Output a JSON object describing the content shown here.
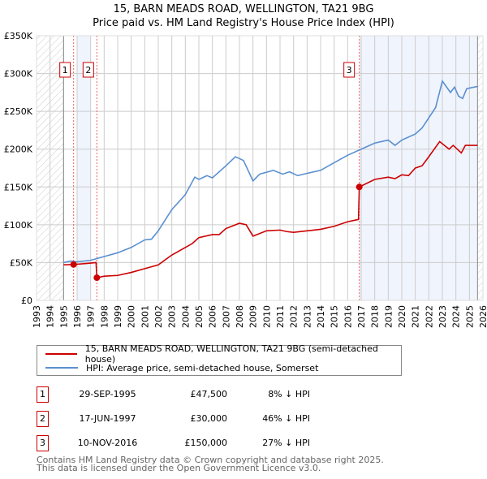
{
  "chart_data": {
    "type": "line",
    "title": "15, BARN MEADS ROAD, WELLINGTON, TA21 9BG",
    "subtitle": "Price paid vs. HM Land Registry's House Price Index (HPI)",
    "xlim": [
      1993,
      2026
    ],
    "ylim": [
      0,
      350000
    ],
    "yticks": [
      {
        "v": 0,
        "label": "£0"
      },
      {
        "v": 50000,
        "label": "£50K"
      },
      {
        "v": 100000,
        "label": "£100K"
      },
      {
        "v": 150000,
        "label": "£150K"
      },
      {
        "v": 200000,
        "label": "£200K"
      },
      {
        "v": 250000,
        "label": "£250K"
      },
      {
        "v": 300000,
        "label": "£300K"
      },
      {
        "v": 350000,
        "label": "£350K"
      }
    ],
    "xticks": [
      "1993",
      "1994",
      "1995",
      "1996",
      "1997",
      "1998",
      "1999",
      "2000",
      "2001",
      "2002",
      "2003",
      "2004",
      "2005",
      "2006",
      "2007",
      "2008",
      "2009",
      "2010",
      "2011",
      "2012",
      "2013",
      "2014",
      "2015",
      "2016",
      "2017",
      "2018",
      "2019",
      "2020",
      "2021",
      "2022",
      "2023",
      "2024",
      "2025",
      "2026"
    ],
    "grid": true,
    "series": [
      {
        "name": "15, BARN MEADS ROAD, WELLINGTON, TA21 9BG (semi-detached house)",
        "color": "#cc0000",
        "points": [
          [
            1995,
            47000
          ],
          [
            1995.74,
            47500
          ],
          [
            1996.5,
            48500
          ],
          [
            1997.4,
            50000
          ],
          [
            1997.46,
            30000
          ],
          [
            1998,
            32000
          ],
          [
            1999,
            33000
          ],
          [
            2000,
            37000
          ],
          [
            2001,
            42000
          ],
          [
            2002,
            47000
          ],
          [
            2003,
            60000
          ],
          [
            2004,
            70000
          ],
          [
            2004.5,
            75000
          ],
          [
            2005,
            83000
          ],
          [
            2006,
            87000
          ],
          [
            2006.5,
            87000
          ],
          [
            2007,
            95000
          ],
          [
            2008,
            102000
          ],
          [
            2008.5,
            100000
          ],
          [
            2009,
            85000
          ],
          [
            2010,
            92000
          ],
          [
            2011,
            93000
          ],
          [
            2011.5,
            91000
          ],
          [
            2012,
            90000
          ],
          [
            2013,
            92000
          ],
          [
            2014,
            94000
          ],
          [
            2015,
            98000
          ],
          [
            2016,
            104000
          ],
          [
            2016.8,
            107000
          ],
          [
            2016.86,
            150000
          ],
          [
            2018,
            160000
          ],
          [
            2019,
            163000
          ],
          [
            2019.5,
            161000
          ],
          [
            2020,
            166000
          ],
          [
            2020.5,
            165000
          ],
          [
            2021,
            175000
          ],
          [
            2021.5,
            178000
          ],
          [
            2022,
            190000
          ],
          [
            2022.8,
            210000
          ],
          [
            2023.5,
            200000
          ],
          [
            2023.8,
            205000
          ],
          [
            2024.4,
            195000
          ],
          [
            2024.7,
            205000
          ],
          [
            2025.6,
            205000
          ]
        ]
      },
      {
        "name": "HPI: Average price, semi-detached house, Somerset",
        "color": "#5b8fd0",
        "points": [
          [
            1995,
            50000
          ],
          [
            1995.5,
            52000
          ],
          [
            1996,
            51000
          ],
          [
            1997,
            53000
          ],
          [
            1998,
            58000
          ],
          [
            1999,
            63000
          ],
          [
            2000,
            70000
          ],
          [
            2001,
            80000
          ],
          [
            2001.5,
            81000
          ],
          [
            2002,
            92000
          ],
          [
            2003,
            120000
          ],
          [
            2004,
            140000
          ],
          [
            2004.7,
            163000
          ],
          [
            2005,
            160000
          ],
          [
            2005.6,
            165000
          ],
          [
            2006,
            162000
          ],
          [
            2007,
            178000
          ],
          [
            2007.7,
            190000
          ],
          [
            2008.3,
            185000
          ],
          [
            2009,
            158000
          ],
          [
            2009.5,
            167000
          ],
          [
            2010.5,
            172000
          ],
          [
            2011.2,
            167000
          ],
          [
            2011.7,
            170000
          ],
          [
            2012.3,
            165000
          ],
          [
            2013,
            168000
          ],
          [
            2014,
            172000
          ],
          [
            2015,
            182000
          ],
          [
            2016,
            192000
          ],
          [
            2017,
            200000
          ],
          [
            2018,
            208000
          ],
          [
            2019,
            212000
          ],
          [
            2019.5,
            205000
          ],
          [
            2020,
            212000
          ],
          [
            2021,
            220000
          ],
          [
            2021.5,
            228000
          ],
          [
            2022.5,
            255000
          ],
          [
            2023,
            290000
          ],
          [
            2023.6,
            275000
          ],
          [
            2023.9,
            282000
          ],
          [
            2024.2,
            270000
          ],
          [
            2024.5,
            267000
          ],
          [
            2024.8,
            280000
          ],
          [
            2025.6,
            283000
          ]
        ]
      }
    ],
    "sales": [
      {
        "n": "1",
        "year": 1995.74,
        "value": 47500
      },
      {
        "n": "2",
        "year": 1997.46,
        "value": 30000
      },
      {
        "n": "3",
        "year": 2016.86,
        "value": 150000
      }
    ],
    "shaded": [
      [
        1996,
        1997
      ],
      [
        2016.86,
        2025.6
      ]
    ],
    "hatched": [
      [
        1993,
        1995
      ],
      [
        2025.6,
        2026
      ]
    ]
  },
  "legend": {
    "property": "15, BARN MEADS ROAD, WELLINGTON, TA21 9BG (semi-detached house)",
    "hpi": "HPI: Average price, semi-detached house, Somerset"
  },
  "transactions": [
    {
      "n": "1",
      "date": "29-SEP-1995",
      "price": "£47,500",
      "hpi": "8% ↓ HPI"
    },
    {
      "n": "2",
      "date": "17-JUN-1997",
      "price": "£30,000",
      "hpi": "46% ↓ HPI"
    },
    {
      "n": "3",
      "date": "10-NOV-2016",
      "price": "£150,000",
      "hpi": "27% ↓ HPI"
    }
  ],
  "footer": {
    "line1": "Contains HM Land Registry data © Crown copyright and database right 2025.",
    "line2": "This data is licensed under the Open Government Licence v3.0."
  }
}
